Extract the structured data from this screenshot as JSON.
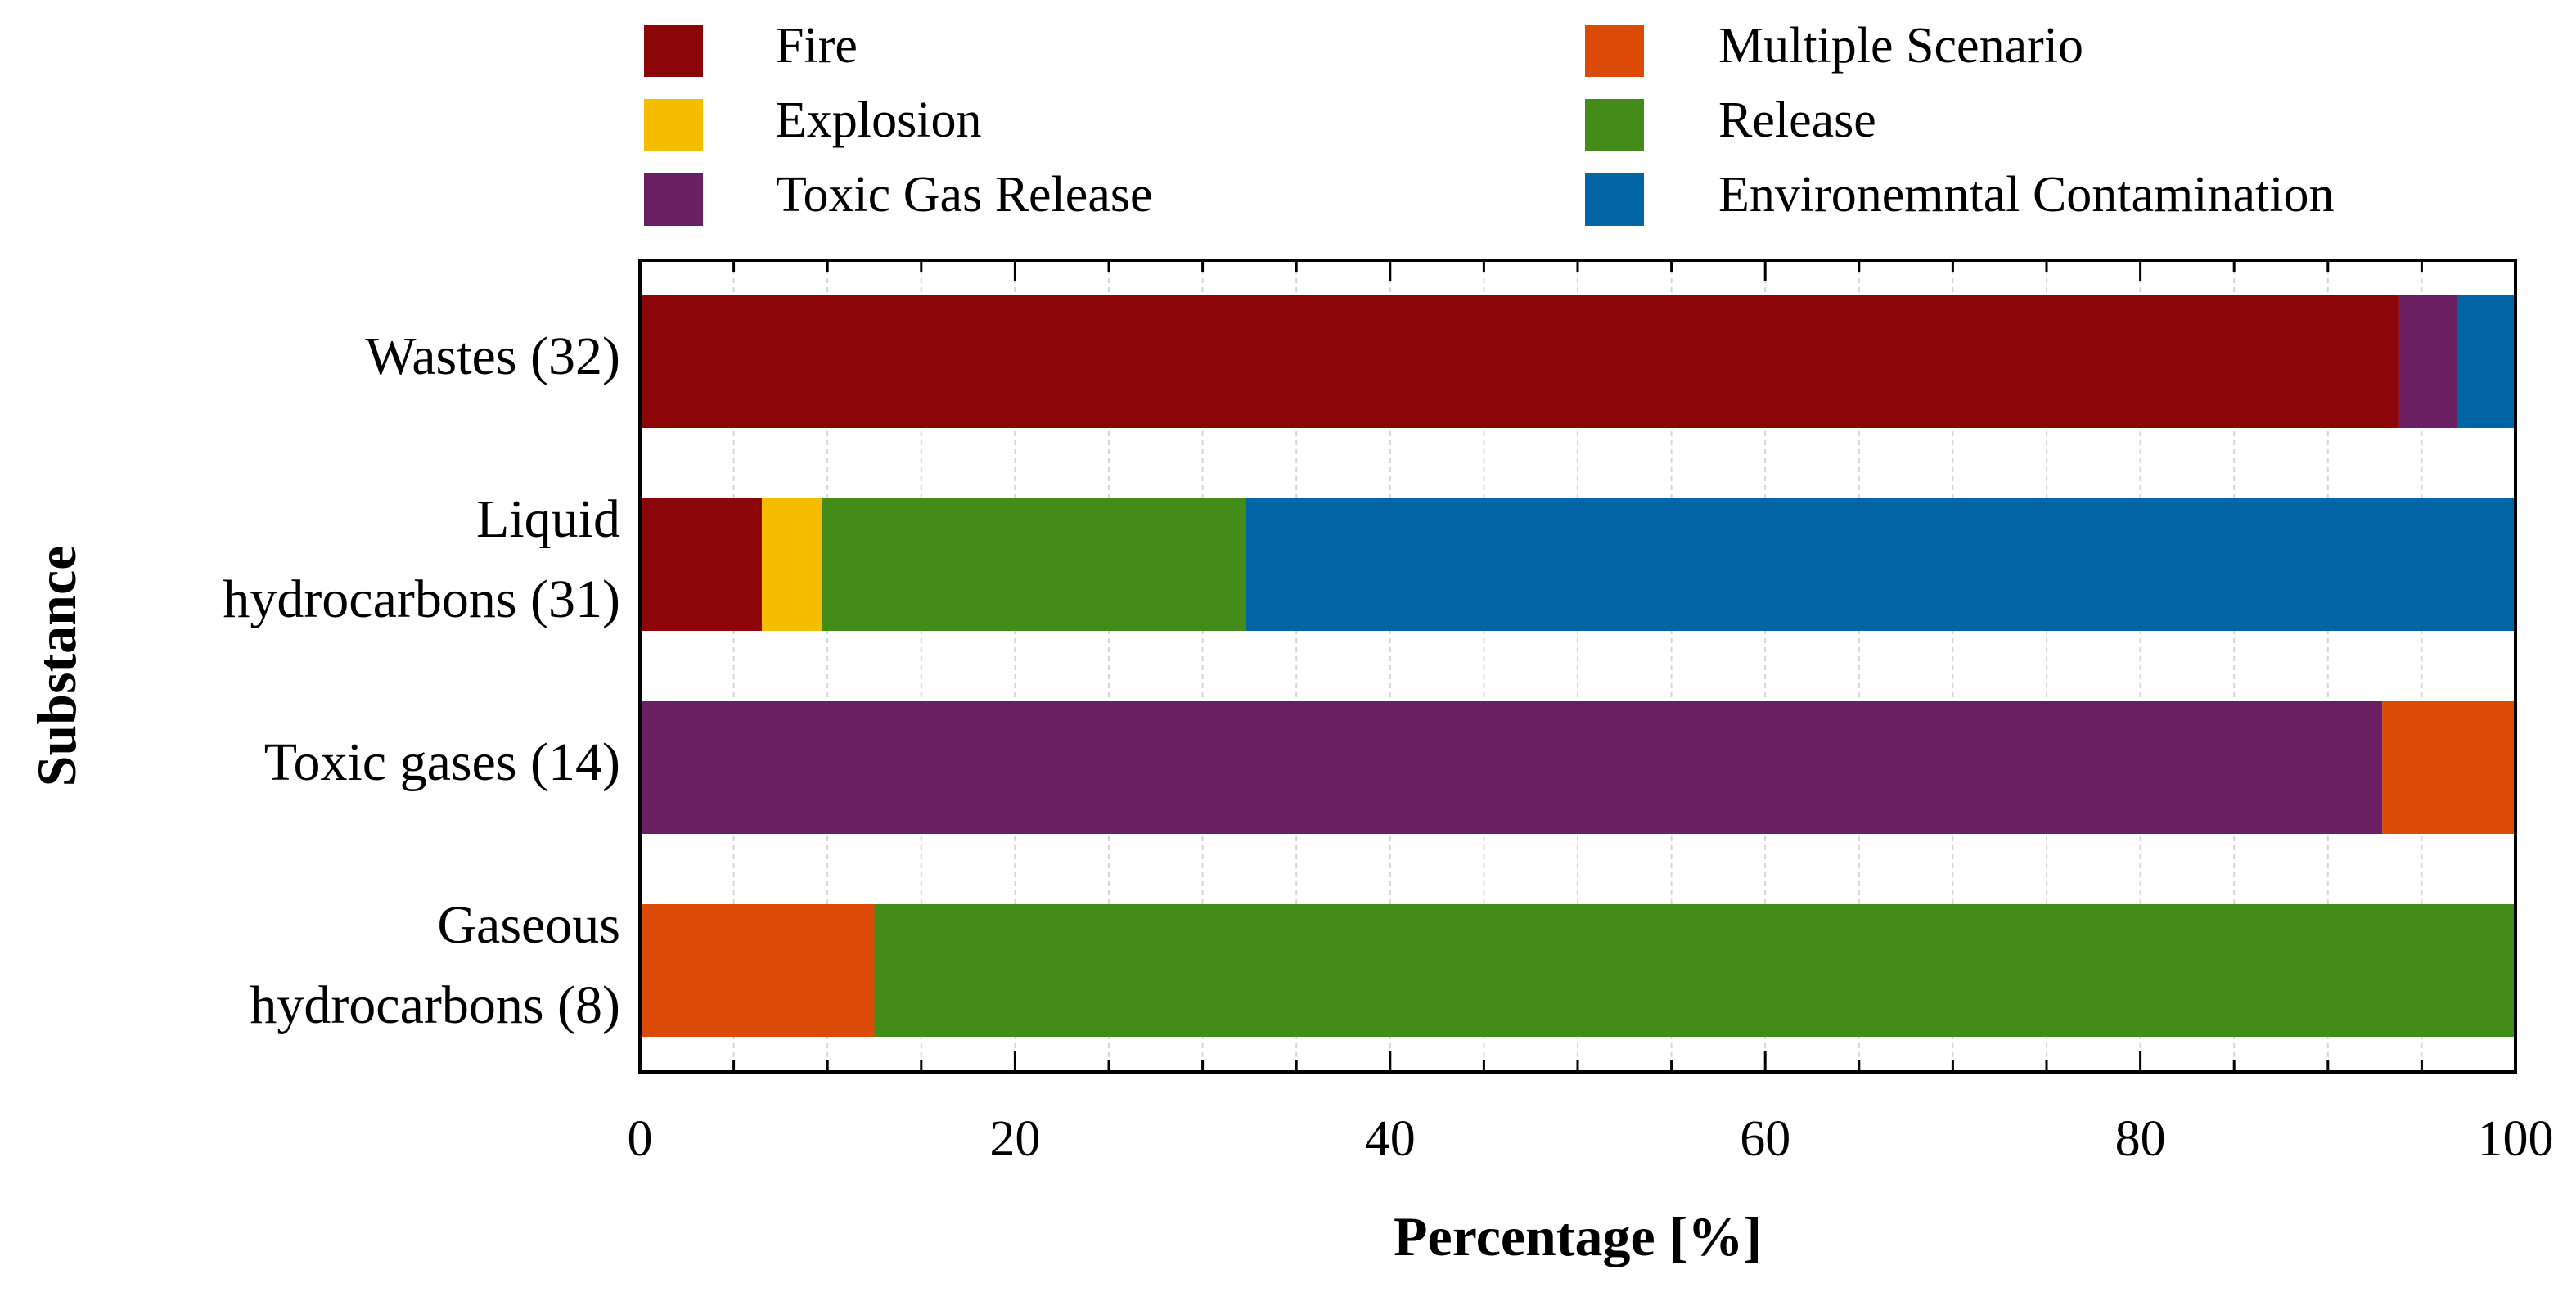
{
  "chart_data": {
    "type": "bar",
    "orientation": "horizontal",
    "stacked": true,
    "xlabel": "Percentage [%]",
    "ylabel": "Substance",
    "xlim": [
      0,
      100
    ],
    "xticks": [
      0,
      20,
      40,
      60,
      80,
      100
    ],
    "grid": true,
    "legend_position": "top",
    "categories": [
      [
        "Wastes (32)"
      ],
      [
        "Liquid",
        "hydrocarbons (31)"
      ],
      [
        "Toxic gases (14)"
      ],
      [
        "Gaseous",
        "hydrocarbons (8)"
      ]
    ],
    "series": [
      {
        "name": "Fire",
        "color": "#8B0509",
        "values": [
          93.8,
          6.5,
          0,
          0
        ]
      },
      {
        "name": "Explosion",
        "color": "#F5BD00",
        "values": [
          0,
          3.2,
          0,
          0
        ]
      },
      {
        "name": "Toxic Gas Release",
        "color": "#6A1F62",
        "values": [
          3.1,
          0,
          92.9,
          0
        ]
      },
      {
        "name": "Multiple Scenario",
        "color": "#DB4A07",
        "values": [
          0,
          0,
          7.1,
          12.5
        ]
      },
      {
        "name": "Release",
        "color": "#448C19",
        "values": [
          0,
          22.6,
          0,
          87.5
        ]
      },
      {
        "name": "Environemntal Contamination",
        "color": "#0265A5",
        "values": [
          3.1,
          67.7,
          0,
          0
        ]
      }
    ]
  }
}
